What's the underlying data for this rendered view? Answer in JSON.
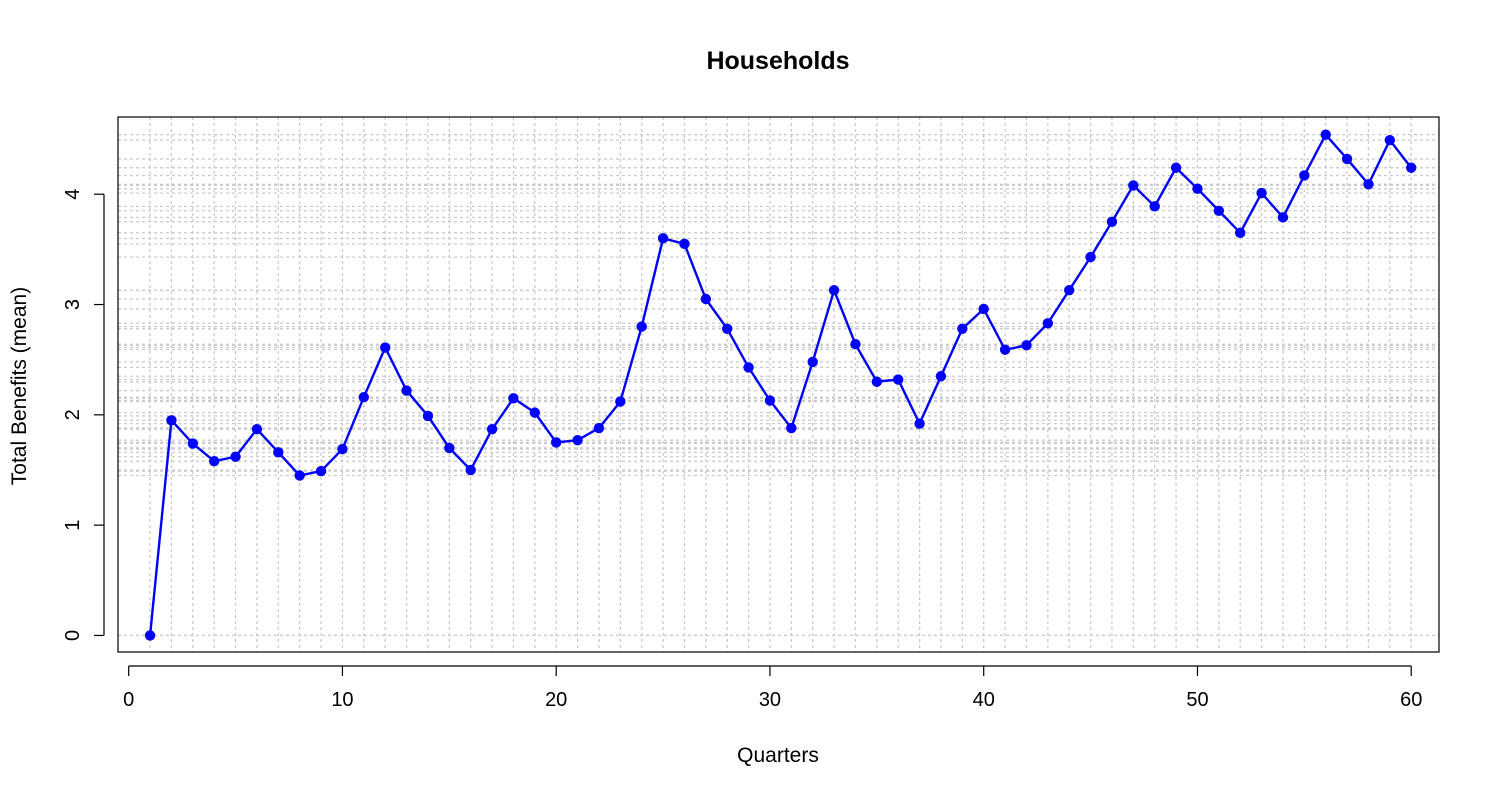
{
  "chart_data": {
    "type": "line",
    "title": "Households",
    "xlabel": "Quarters",
    "ylabel": "Total Benefits (mean)",
    "xlim": [
      -0.5,
      61.3
    ],
    "ylim": [
      -0.15,
      4.7
    ],
    "x_ticks": [
      0,
      10,
      20,
      30,
      40,
      50,
      60
    ],
    "y_ticks": [
      0,
      1,
      2,
      3,
      4
    ],
    "grid": true,
    "grid_style": "dotted light gray lines at every x value and every y value",
    "legend": "none",
    "colors": {
      "series": "#0000ff",
      "grid": "#cccccc",
      "axis": "#000000"
    },
    "x": [
      1,
      2,
      3,
      4,
      5,
      6,
      7,
      8,
      9,
      10,
      11,
      12,
      13,
      14,
      15,
      16,
      17,
      18,
      19,
      20,
      21,
      22,
      23,
      24,
      25,
      26,
      27,
      28,
      29,
      30,
      31,
      32,
      33,
      34,
      35,
      36,
      37,
      38,
      39,
      40,
      41,
      42,
      43,
      44,
      45,
      46,
      47,
      48,
      49,
      50,
      51,
      52,
      53,
      54,
      55,
      56,
      57,
      58,
      59,
      60
    ],
    "series": [
      {
        "values": [
          0,
          1.95,
          1.74,
          1.58,
          1.62,
          1.87,
          1.66,
          1.45,
          1.49,
          1.69,
          2.16,
          2.61,
          2.22,
          1.99,
          1.7,
          1.5,
          1.87,
          2.15,
          2.02,
          1.75,
          1.77,
          1.88,
          2.12,
          2.8,
          3.6,
          3.55,
          3.05,
          2.78,
          2.43,
          2.13,
          1.88,
          2.48,
          3.13,
          2.64,
          2.3,
          2.32,
          1.92,
          2.35,
          2.78,
          2.96,
          2.59,
          2.63,
          2.83,
          3.13,
          3.43,
          3.75,
          4.08,
          3.89,
          4.24,
          4.05,
          3.85,
          3.65,
          4.01,
          3.79,
          4.17,
          4.54,
          4.32,
          4.09,
          4.49,
          4.24
        ]
      }
    ]
  }
}
